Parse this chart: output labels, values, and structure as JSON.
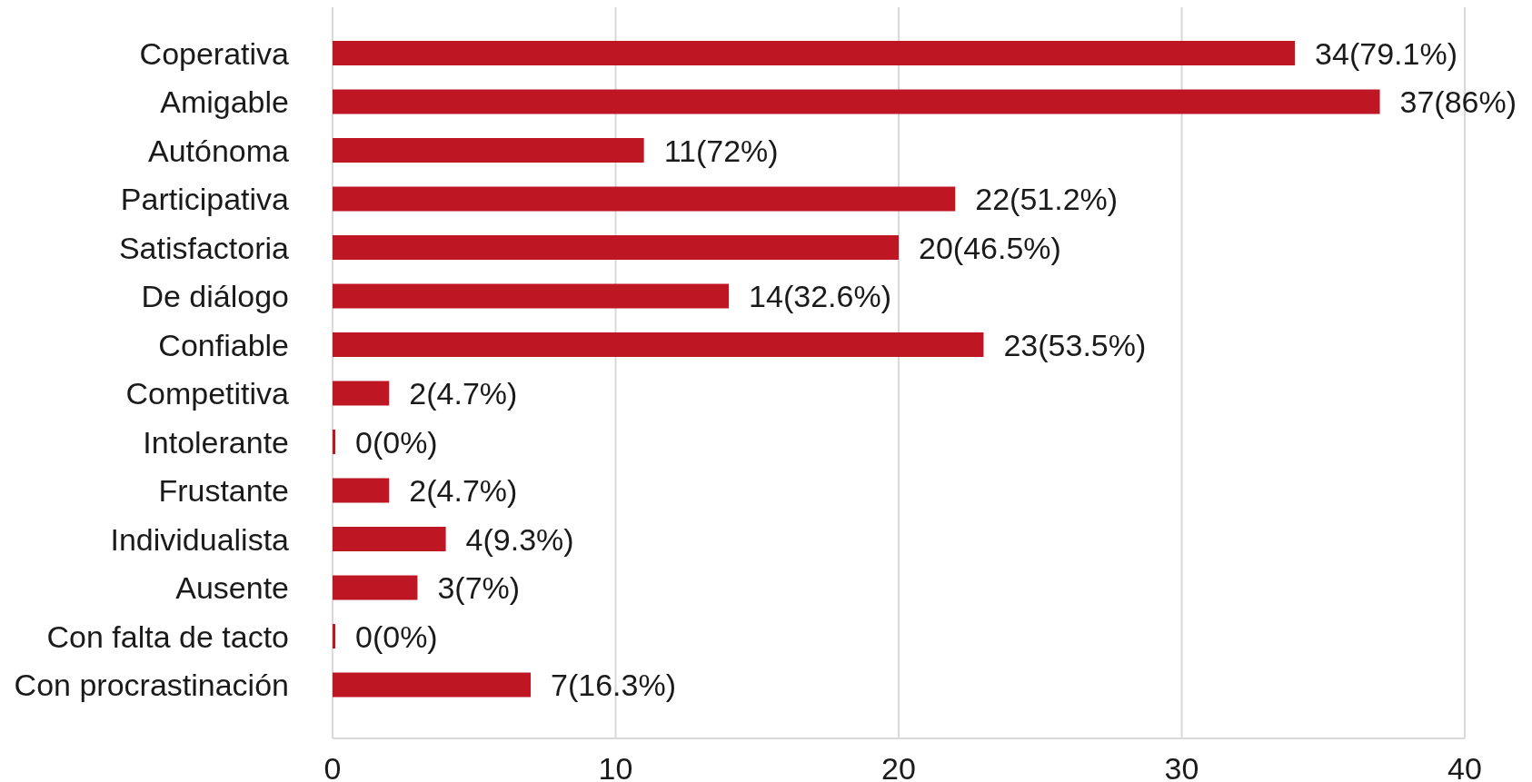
{
  "chart_data": {
    "type": "bar",
    "orientation": "horizontal",
    "categories": [
      "Coperativa",
      "Amigable",
      "Autónoma",
      "Participativa",
      "Satisfactoria",
      "De diálogo",
      "Confiable",
      "Competitiva",
      "Intolerante",
      "Frustante",
      "Individualista",
      "Ausente",
      "Con falta de tacto",
      "Con procrastinación"
    ],
    "values": [
      34,
      37,
      11,
      22,
      20,
      14,
      23,
      2,
      0,
      2,
      4,
      3,
      0,
      7
    ],
    "color": "#be1622",
    "value_labels": [
      "34(79.1%)",
      "37(86%)",
      "11(72%)",
      "22(51.2%)",
      "20(46.5%)",
      "14(32.6%)",
      "23(53.5%)",
      "2(4.7%)",
      "0(0%)",
      "2(4.7%)",
      "4(9.3%)",
      "3(7%)",
      "0(0%)",
      "7(16.3%)"
    ],
    "xlim": [
      0,
      40
    ],
    "xticks": [
      0,
      10,
      20,
      30,
      40
    ],
    "grid": "x"
  }
}
